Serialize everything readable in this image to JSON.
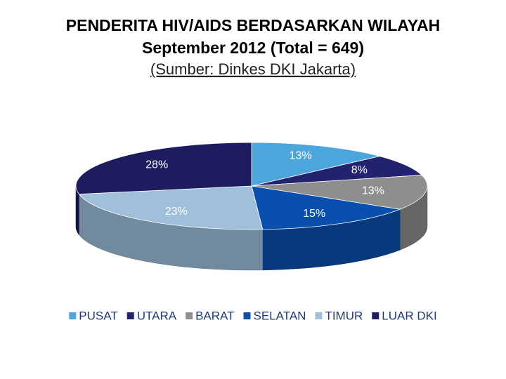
{
  "chart_data": {
    "type": "pie",
    "title": "PENDERITA HIV/AIDS BERDASARKAN WILAYAH",
    "subtitle": "September 2012 (Total = 649)",
    "source": "(Sumber: Dinkes DKI Jakarta)",
    "categories": [
      "PUSAT",
      "UTARA",
      "BARAT",
      "SELATAN",
      "TIMUR",
      "LUAR DKI"
    ],
    "values": [
      13,
      8,
      13,
      15,
      23,
      28
    ],
    "value_labels": [
      "13%",
      "8%",
      "13%",
      "15%",
      "23%",
      "28%"
    ],
    "colors": [
      "#4ca6dc",
      "#22226e",
      "#8e8e8e",
      "#0b4fae",
      "#9fbfda",
      "#1c1c5e"
    ],
    "legend": "bottom"
  }
}
